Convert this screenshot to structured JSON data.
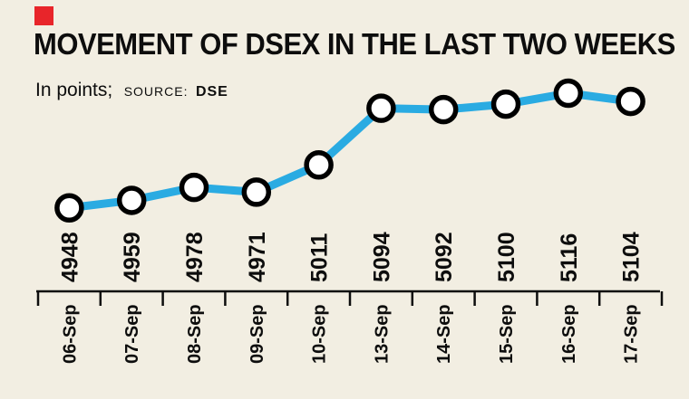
{
  "colors": {
    "background": "#f2eee2",
    "accent_red": "#e8252a",
    "line": "#2aabe2",
    "marker_fill": "#ffffff",
    "marker_stroke": "#000000",
    "axis": "#0d0d0d",
    "text": "#0d0d0d"
  },
  "header": {
    "title": "MOVEMENT OF DSEX IN THE LAST TWO WEEKS",
    "subtitle_prefix": "In points;",
    "source_label": "SOURCE:",
    "source_value": "DSE"
  },
  "chart_data": {
    "type": "line",
    "title": "MOVEMENT OF DSEX IN THE LAST TWO WEEKS",
    "xlabel": "",
    "ylabel": "In points",
    "categories": [
      "06-Sep",
      "07-Sep",
      "08-Sep",
      "09-Sep",
      "10-Sep",
      "13-Sep",
      "14-Sep",
      "15-Sep",
      "16-Sep",
      "17-Sep"
    ],
    "values": [
      4948,
      4959,
      4978,
      4971,
      5011,
      5094,
      5092,
      5100,
      5116,
      5104
    ],
    "ylim": [
      4945,
      5120
    ],
    "grid": false,
    "legend": "none",
    "marker": "open-circle",
    "data_labels": true
  }
}
